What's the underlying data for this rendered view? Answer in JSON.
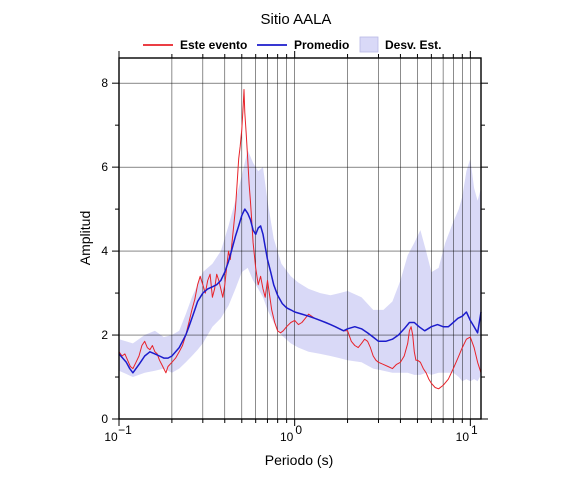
{
  "chart_data": {
    "type": "line",
    "title": "Sitio AALA",
    "xlabel": "Periodo (s)",
    "ylabel": "Amplitud",
    "xscale": "log",
    "xlim": [
      0.1,
      11.5
    ],
    "ylim": [
      0,
      8.6
    ],
    "x_ticks": [
      {
        "base": "10",
        "exp": "−1"
      },
      {
        "base": "10",
        "exp": "0"
      },
      {
        "base": "10",
        "exp": "1"
      }
    ],
    "y_ticks": [
      "0",
      "2",
      "4",
      "6",
      "8"
    ],
    "grid": {
      "x": "minor",
      "y": "major"
    },
    "legend": {
      "position": "top",
      "entries": [
        "Este evento",
        "Promedio",
        "Desv. Est."
      ]
    },
    "colors": {
      "event": "#e8232a",
      "mean": "#1c1ccc",
      "band_fill": "#d9d9f7"
    },
    "series": [
      {
        "name": "Este evento",
        "kind": "line",
        "points": [
          [
            0.1,
            1.6
          ],
          [
            0.104,
            1.5
          ],
          [
            0.108,
            1.55
          ],
          [
            0.112,
            1.4
          ],
          [
            0.116,
            1.25
          ],
          [
            0.12,
            1.2
          ],
          [
            0.125,
            1.35
          ],
          [
            0.13,
            1.5
          ],
          [
            0.135,
            1.75
          ],
          [
            0.14,
            1.85
          ],
          [
            0.145,
            1.7
          ],
          [
            0.15,
            1.65
          ],
          [
            0.155,
            1.75
          ],
          [
            0.16,
            1.6
          ],
          [
            0.165,
            1.55
          ],
          [
            0.17,
            1.4
          ],
          [
            0.175,
            1.3
          ],
          [
            0.18,
            1.2
          ],
          [
            0.185,
            1.1
          ],
          [
            0.19,
            1.25
          ],
          [
            0.2,
            1.35
          ],
          [
            0.21,
            1.45
          ],
          [
            0.22,
            1.6
          ],
          [
            0.23,
            1.75
          ],
          [
            0.24,
            2.0
          ],
          [
            0.25,
            2.3
          ],
          [
            0.26,
            2.6
          ],
          [
            0.27,
            2.85
          ],
          [
            0.28,
            3.2
          ],
          [
            0.29,
            3.4
          ],
          [
            0.3,
            3.2
          ],
          [
            0.31,
            3.0
          ],
          [
            0.32,
            3.3
          ],
          [
            0.33,
            3.45
          ],
          [
            0.34,
            2.9
          ],
          [
            0.35,
            3.1
          ],
          [
            0.36,
            3.45
          ],
          [
            0.37,
            3.3
          ],
          [
            0.38,
            3.1
          ],
          [
            0.39,
            2.9
          ],
          [
            0.4,
            3.2
          ],
          [
            0.41,
            3.6
          ],
          [
            0.42,
            4.0
          ],
          [
            0.43,
            3.8
          ],
          [
            0.44,
            4.2
          ],
          [
            0.45,
            4.6
          ],
          [
            0.46,
            5.0
          ],
          [
            0.47,
            5.6
          ],
          [
            0.48,
            6.2
          ],
          [
            0.49,
            6.5
          ],
          [
            0.5,
            6.9
          ],
          [
            0.51,
            7.5
          ],
          [
            0.515,
            7.85
          ],
          [
            0.52,
            7.3
          ],
          [
            0.53,
            6.8
          ],
          [
            0.54,
            6.2
          ],
          [
            0.55,
            5.6
          ],
          [
            0.56,
            5.2
          ],
          [
            0.57,
            4.7
          ],
          [
            0.58,
            4.2
          ],
          [
            0.6,
            3.6
          ],
          [
            0.62,
            3.2
          ],
          [
            0.64,
            3.4
          ],
          [
            0.66,
            3.1
          ],
          [
            0.68,
            2.9
          ],
          [
            0.7,
            3.3
          ],
          [
            0.72,
            2.95
          ],
          [
            0.74,
            2.6
          ],
          [
            0.77,
            2.3
          ],
          [
            0.8,
            2.1
          ],
          [
            0.83,
            2.05
          ],
          [
            0.86,
            2.1
          ],
          [
            0.9,
            2.2
          ],
          [
            0.95,
            2.3
          ],
          [
            1.0,
            2.35
          ],
          [
            1.05,
            2.25
          ],
          [
            1.1,
            2.3
          ],
          [
            1.15,
            2.4
          ],
          [
            1.2,
            2.5
          ],
          [
            1.3,
            2.4
          ],
          [
            1.4,
            2.35
          ],
          [
            1.5,
            2.3
          ],
          [
            1.6,
            2.25
          ],
          [
            1.7,
            2.2
          ],
          [
            1.8,
            2.15
          ],
          [
            1.9,
            2.1
          ],
          [
            2.0,
            2.1
          ],
          [
            2.1,
            1.85
          ],
          [
            2.2,
            1.75
          ],
          [
            2.3,
            1.7
          ],
          [
            2.4,
            1.8
          ],
          [
            2.5,
            1.9
          ],
          [
            2.6,
            1.85
          ],
          [
            2.7,
            1.7
          ],
          [
            2.8,
            1.5
          ],
          [
            2.9,
            1.4
          ],
          [
            3.0,
            1.35
          ],
          [
            3.2,
            1.3
          ],
          [
            3.4,
            1.25
          ],
          [
            3.6,
            1.2
          ],
          [
            3.8,
            1.3
          ],
          [
            4.0,
            1.35
          ],
          [
            4.2,
            1.5
          ],
          [
            4.4,
            1.8
          ],
          [
            4.5,
            2.1
          ],
          [
            4.6,
            2.2
          ],
          [
            4.7,
            2.0
          ],
          [
            4.8,
            1.6
          ],
          [
            4.9,
            1.4
          ],
          [
            5.0,
            1.4
          ],
          [
            5.2,
            1.35
          ],
          [
            5.4,
            1.2
          ],
          [
            5.6,
            1.1
          ],
          [
            5.8,
            0.95
          ],
          [
            6.0,
            0.85
          ],
          [
            6.3,
            0.75
          ],
          [
            6.6,
            0.72
          ],
          [
            7.0,
            0.8
          ],
          [
            7.5,
            0.95
          ],
          [
            8.0,
            1.2
          ],
          [
            8.5,
            1.45
          ],
          [
            9.0,
            1.7
          ],
          [
            9.5,
            1.9
          ],
          [
            10.0,
            1.95
          ],
          [
            10.5,
            1.7
          ],
          [
            11.0,
            1.35
          ],
          [
            11.5,
            1.1
          ]
        ]
      },
      {
        "name": "Promedio",
        "kind": "line",
        "points": [
          [
            0.1,
            1.55
          ],
          [
            0.105,
            1.45
          ],
          [
            0.11,
            1.35
          ],
          [
            0.115,
            1.2
          ],
          [
            0.12,
            1.1
          ],
          [
            0.125,
            1.2
          ],
          [
            0.13,
            1.3
          ],
          [
            0.135,
            1.4
          ],
          [
            0.14,
            1.5
          ],
          [
            0.15,
            1.6
          ],
          [
            0.16,
            1.55
          ],
          [
            0.17,
            1.5
          ],
          [
            0.18,
            1.45
          ],
          [
            0.19,
            1.45
          ],
          [
            0.2,
            1.5
          ],
          [
            0.21,
            1.6
          ],
          [
            0.22,
            1.7
          ],
          [
            0.23,
            1.85
          ],
          [
            0.24,
            2.0
          ],
          [
            0.25,
            2.2
          ],
          [
            0.26,
            2.4
          ],
          [
            0.27,
            2.6
          ],
          [
            0.28,
            2.8
          ],
          [
            0.29,
            2.9
          ],
          [
            0.3,
            3.0
          ],
          [
            0.32,
            3.1
          ],
          [
            0.34,
            3.15
          ],
          [
            0.36,
            3.2
          ],
          [
            0.38,
            3.3
          ],
          [
            0.4,
            3.5
          ],
          [
            0.42,
            3.75
          ],
          [
            0.44,
            4.05
          ],
          [
            0.46,
            4.35
          ],
          [
            0.48,
            4.6
          ],
          [
            0.5,
            4.85
          ],
          [
            0.52,
            5.0
          ],
          [
            0.54,
            4.9
          ],
          [
            0.56,
            4.75
          ],
          [
            0.58,
            4.5
          ],
          [
            0.6,
            4.4
          ],
          [
            0.62,
            4.55
          ],
          [
            0.64,
            4.6
          ],
          [
            0.66,
            4.4
          ],
          [
            0.68,
            4.1
          ],
          [
            0.7,
            3.8
          ],
          [
            0.73,
            3.5
          ],
          [
            0.76,
            3.2
          ],
          [
            0.8,
            2.95
          ],
          [
            0.85,
            2.75
          ],
          [
            0.9,
            2.65
          ],
          [
            0.95,
            2.6
          ],
          [
            1.0,
            2.55
          ],
          [
            1.1,
            2.5
          ],
          [
            1.2,
            2.45
          ],
          [
            1.3,
            2.4
          ],
          [
            1.4,
            2.35
          ],
          [
            1.5,
            2.3
          ],
          [
            1.6,
            2.25
          ],
          [
            1.7,
            2.2
          ],
          [
            1.8,
            2.15
          ],
          [
            1.9,
            2.1
          ],
          [
            2.0,
            2.15
          ],
          [
            2.2,
            2.2
          ],
          [
            2.4,
            2.15
          ],
          [
            2.6,
            2.05
          ],
          [
            2.8,
            1.95
          ],
          [
            3.0,
            1.85
          ],
          [
            3.3,
            1.85
          ],
          [
            3.6,
            1.9
          ],
          [
            3.9,
            2.0
          ],
          [
            4.2,
            2.15
          ],
          [
            4.5,
            2.3
          ],
          [
            4.8,
            2.3
          ],
          [
            5.1,
            2.2
          ],
          [
            5.5,
            2.1
          ],
          [
            6.0,
            2.2
          ],
          [
            6.5,
            2.25
          ],
          [
            7.0,
            2.2
          ],
          [
            7.5,
            2.2
          ],
          [
            8.0,
            2.3
          ],
          [
            8.5,
            2.4
          ],
          [
            9.0,
            2.45
          ],
          [
            9.5,
            2.55
          ],
          [
            10.0,
            2.35
          ],
          [
            10.5,
            2.2
          ],
          [
            11.0,
            2.05
          ],
          [
            11.5,
            2.55
          ]
        ]
      },
      {
        "name": "Desv. Est.",
        "kind": "band",
        "x": [
          0.1,
          0.12,
          0.14,
          0.16,
          0.18,
          0.2,
          0.22,
          0.24,
          0.26,
          0.28,
          0.3,
          0.34,
          0.38,
          0.42,
          0.46,
          0.5,
          0.54,
          0.58,
          0.62,
          0.66,
          0.7,
          0.76,
          0.84,
          0.95,
          1.05,
          1.2,
          1.4,
          1.6,
          1.8,
          2.0,
          2.4,
          2.8,
          3.2,
          3.6,
          4.0,
          4.4,
          4.8,
          5.2,
          5.6,
          6.0,
          6.6,
          7.2,
          8.0,
          8.6,
          9.0,
          9.5,
          10.0,
          10.5,
          11.0,
          11.5
        ],
        "upper": [
          1.9,
          1.8,
          2.0,
          2.1,
          1.95,
          2.0,
          2.1,
          2.5,
          2.9,
          3.2,
          3.5,
          3.7,
          4.0,
          4.6,
          5.2,
          5.8,
          6.4,
          6.1,
          5.9,
          6.0,
          5.2,
          4.3,
          3.7,
          3.4,
          3.25,
          3.1,
          3.0,
          2.95,
          3.0,
          3.05,
          2.9,
          2.6,
          2.6,
          2.8,
          3.3,
          3.9,
          4.2,
          4.5,
          4.0,
          3.5,
          3.6,
          4.2,
          4.7,
          5.0,
          5.3,
          5.9,
          6.2,
          5.5,
          5.2,
          5.5
        ],
        "lower": [
          1.15,
          1.0,
          1.1,
          1.15,
          1.2,
          1.1,
          1.2,
          1.35,
          1.5,
          1.65,
          1.8,
          2.2,
          2.4,
          2.7,
          3.1,
          3.5,
          3.6,
          3.3,
          3.1,
          2.9,
          2.6,
          2.3,
          2.0,
          1.8,
          1.7,
          1.6,
          1.55,
          1.5,
          1.45,
          1.4,
          1.35,
          1.2,
          1.15,
          1.1,
          1.1,
          1.1,
          1.05,
          1.05,
          1.1,
          1.05,
          1.1,
          1.1,
          1.1,
          1.0,
          0.9,
          0.95,
          0.9,
          0.95,
          0.9,
          1.05
        ]
      }
    ]
  }
}
